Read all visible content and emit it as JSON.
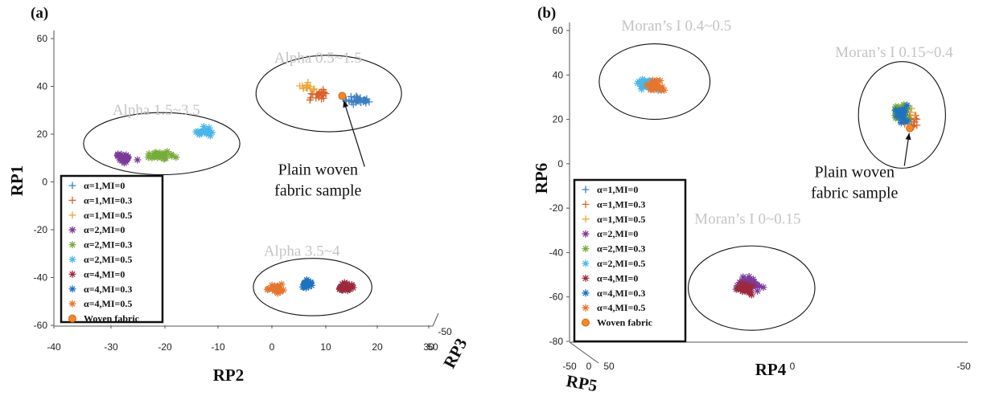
{
  "chart_data": [
    {
      "panel_label": "(a)",
      "type": "scatter",
      "xlabel": "RP2",
      "ylabel": "RP1",
      "zlabel": "RP3",
      "xlim": [
        -40,
        30
      ],
      "ylim": [
        -60,
        60
      ],
      "x_ticks": [
        "-40",
        "-30",
        "-20",
        "-10",
        "0",
        "10",
        "20",
        "30"
      ],
      "y_ticks": [
        "60",
        "40",
        "20",
        "0",
        "-20",
        "-40",
        "-60"
      ],
      "z_ticks": [
        "-50",
        "50"
      ],
      "legend_position": "bottom-left",
      "group_labels": [
        {
          "text": "Alpha 0.5~1.5",
          "x": 9,
          "y": 50
        },
        {
          "text": "Alpha 1.5~3.5",
          "x": -21,
          "y": 28
        },
        {
          "text": "Alpha 3.5~4",
          "x": 6,
          "y": -31
        }
      ],
      "ellipses": [
        {
          "cx": 11,
          "cy": 37,
          "rx": 13.5,
          "ry": 16
        },
        {
          "cx": -20,
          "cy": 16,
          "rx": 14.5,
          "ry": 13
        },
        {
          "cx": 8,
          "cy": -44,
          "rx": 11,
          "ry": 12
        }
      ],
      "annotation": {
        "lines": [
          "Plain woven",
          "fabric sample"
        ],
        "text_x": 9,
        "text_y": 3,
        "point": [
          13.5,
          36
        ]
      },
      "series": [
        {
          "name": "α=1,MI=0",
          "marker": "plus",
          "color": "#3d7fc1",
          "cx": 16.5,
          "cy": 34,
          "sx": 4.5,
          "sy": 3,
          "n": 32
        },
        {
          "name": "α=1,MI=0.3",
          "marker": "plus",
          "color": "#d9612a",
          "cx": 9,
          "cy": 36.5,
          "sx": 4,
          "sy": 4.5,
          "n": 22
        },
        {
          "name": "α=1,MI=0.5",
          "marker": "plus",
          "color": "#eaa83a",
          "cx": 7,
          "cy": 40,
          "sx": 2.5,
          "sy": 2.5,
          "n": 14
        },
        {
          "name": "α=2,MI=0",
          "marker": "star",
          "color": "#7b3b9a",
          "cx": -27,
          "cy": 10,
          "sx": 3.5,
          "sy": 3,
          "n": 26
        },
        {
          "name": "α=2,MI=0.3",
          "marker": "star",
          "color": "#77ac3a",
          "cx": -20,
          "cy": 11,
          "sx": 5,
          "sy": 4,
          "n": 26
        },
        {
          "name": "α=2,MI=0.5",
          "marker": "star",
          "color": "#4ab6e8",
          "cx": -12,
          "cy": 21,
          "sx": 3,
          "sy": 3,
          "n": 24
        },
        {
          "name": "α=4,MI=0",
          "marker": "star",
          "color": "#9c2a3c",
          "cx": 14,
          "cy": -44,
          "sx": 3.2,
          "sy": 3,
          "n": 30
        },
        {
          "name": "α=4,MI=0.3",
          "marker": "star",
          "color": "#1f72bf",
          "cx": 7,
          "cy": -43,
          "sx": 2.5,
          "sy": 3,
          "n": 20
        },
        {
          "name": "α=4,MI=0.5",
          "marker": "star",
          "color": "#e5762e",
          "cx": 1,
          "cy": -45,
          "sx": 3,
          "sy": 3.5,
          "n": 26
        },
        {
          "name": "Woven fabric",
          "marker": "dot",
          "color": "#f08a28",
          "points": [
            [
              13.5,
              36
            ]
          ]
        }
      ]
    },
    {
      "panel_label": "(b)",
      "type": "scatter",
      "xlabel": "RP4",
      "ylabel": "RP6",
      "zlabel": "RP5",
      "xlim": [
        0,
        100
      ],
      "ylim": [
        -80,
        60
      ],
      "x_ticks": [
        "-50",
        "0",
        "50",
        "0",
        "-50"
      ],
      "y_ticks": [
        "60",
        "40",
        "20",
        "0",
        "-20",
        "-40",
        "-60",
        "-80"
      ],
      "legend_position": "bottom-left",
      "group_labels": [
        {
          "text": "Moran’s I 0.4~0.5",
          "x": 27,
          "y": 60
        },
        {
          "text": "Moran’s I 0.15~0.4",
          "x": 82,
          "y": 48
        },
        {
          "text": "Moran’s I 0~0.15",
          "x": 45,
          "y": -27
        }
      ],
      "ellipses": [
        {
          "cx": 21.5,
          "cy": 37,
          "rx": 14,
          "ry": 17
        },
        {
          "cx": 84,
          "cy": 22,
          "rx": 11,
          "ry": 24
        },
        {
          "cx": 46,
          "cy": -56,
          "rx": 16,
          "ry": 19
        }
      ],
      "annotation": {
        "lines": [
          "Plain woven",
          "fabric sample"
        ],
        "text_x": 72,
        "text_y": -6,
        "point": [
          86,
          16
        ]
      },
      "series": [
        {
          "name": "α=1,MI=0",
          "marker": "plus",
          "color": "#3d7fc1",
          "cx": 84,
          "cy": 22,
          "sx": 3.5,
          "sy": 7,
          "n": 24
        },
        {
          "name": "α=1,MI=0.3",
          "marker": "plus",
          "color": "#d9612a",
          "cx": 86,
          "cy": 20,
          "sx": 5,
          "sy": 7,
          "n": 18
        },
        {
          "name": "α=1,MI=0.5",
          "marker": "plus",
          "color": "#eaa83a",
          "cx": 85,
          "cy": 23,
          "sx": 4,
          "sy": 7,
          "n": 14
        },
        {
          "name": "α=2,MI=0",
          "marker": "star",
          "color": "#7b3b9a",
          "cx": 45,
          "cy": -54,
          "sx": 6,
          "sy": 5,
          "n": 40
        },
        {
          "name": "α=2,MI=0.3",
          "marker": "star",
          "color": "#77ac3a",
          "cx": 84,
          "cy": 23,
          "sx": 3.5,
          "sy": 6.5,
          "n": 20
        },
        {
          "name": "α=2,MI=0.5",
          "marker": "star",
          "color": "#4ab6e8",
          "cx": 20,
          "cy": 36,
          "sx": 5,
          "sy": 5,
          "n": 32
        },
        {
          "name": "α=4,MI=0",
          "marker": "star",
          "color": "#9c2a3c",
          "cx": 44,
          "cy": -56,
          "sx": 5,
          "sy": 5,
          "n": 26
        },
        {
          "name": "α=4,MI=0.3",
          "marker": "star",
          "color": "#1f72bf",
          "cx": 84,
          "cy": 22,
          "sx": 3.5,
          "sy": 6.5,
          "n": 22
        },
        {
          "name": "α=4,MI=0.5",
          "marker": "star",
          "color": "#e5762e",
          "cx": 22,
          "cy": 35,
          "sx": 5.5,
          "sy": 5.5,
          "n": 22
        },
        {
          "name": "Woven fabric",
          "marker": "dot",
          "color": "#f08a28",
          "points": [
            [
              86,
              16
            ]
          ]
        }
      ]
    }
  ]
}
